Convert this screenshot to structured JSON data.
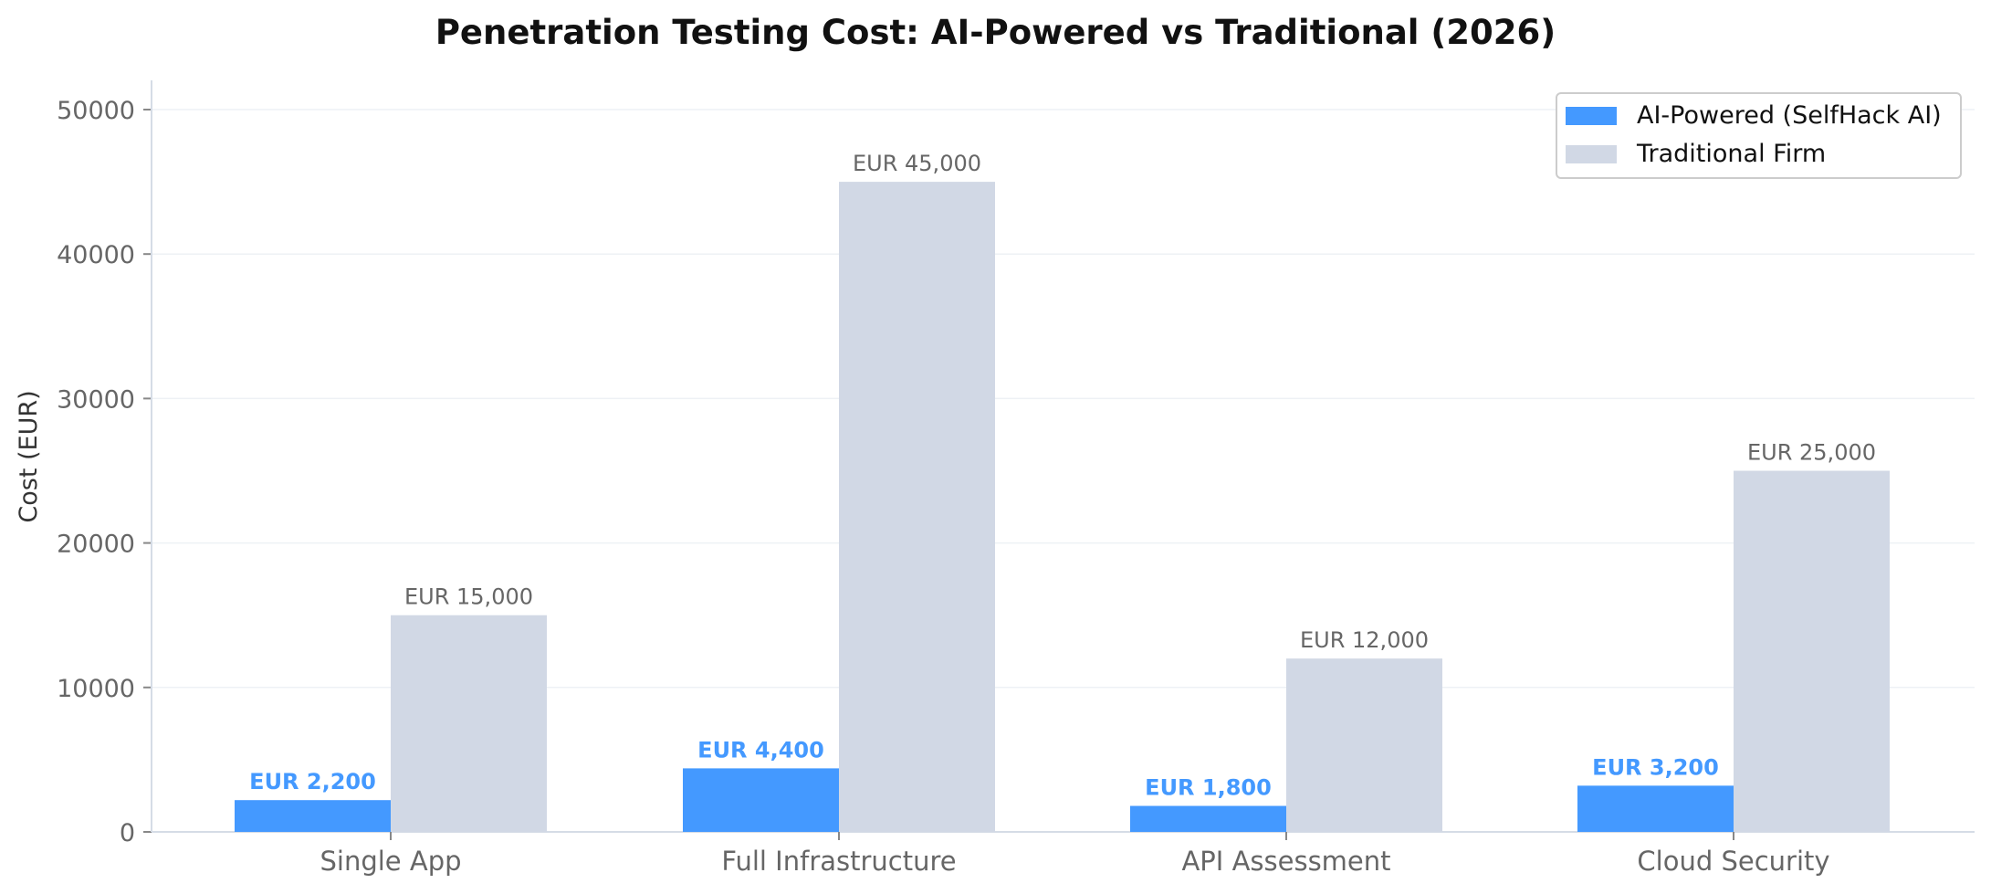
{
  "chart_data": {
    "type": "bar",
    "title": "Penetration Testing Cost: AI-Powered vs Traditional (2026)",
    "xlabel": "",
    "ylabel": "Cost (EUR)",
    "categories": [
      "Single App",
      "Full Infrastructure",
      "API Assessment",
      "Cloud Security"
    ],
    "series": [
      {
        "name": "AI-Powered (SelfHack AI)",
        "values": [
          2200,
          4400,
          1800,
          3200
        ],
        "labels": [
          "EUR 2,200",
          "EUR 4,400",
          "EUR 1,800",
          "EUR 3,200"
        ],
        "color": "#4499ff"
      },
      {
        "name": "Traditional Firm",
        "values": [
          15000,
          45000,
          12000,
          25000
        ],
        "labels": [
          "EUR 15,000",
          "EUR 45,000",
          "EUR 12,000",
          "EUR 25,000"
        ],
        "color": "#d1d8e5"
      }
    ],
    "ylim": [
      0,
      52000
    ],
    "yticks": [
      0,
      10000,
      20000,
      30000,
      40000,
      50000
    ],
    "grid": "horizontal",
    "legend": "top-right",
    "colors": {
      "label_traditional": "#666666",
      "tick_text": "#666666",
      "axis": "#d5dce6",
      "grid": "#eef1f5"
    }
  }
}
